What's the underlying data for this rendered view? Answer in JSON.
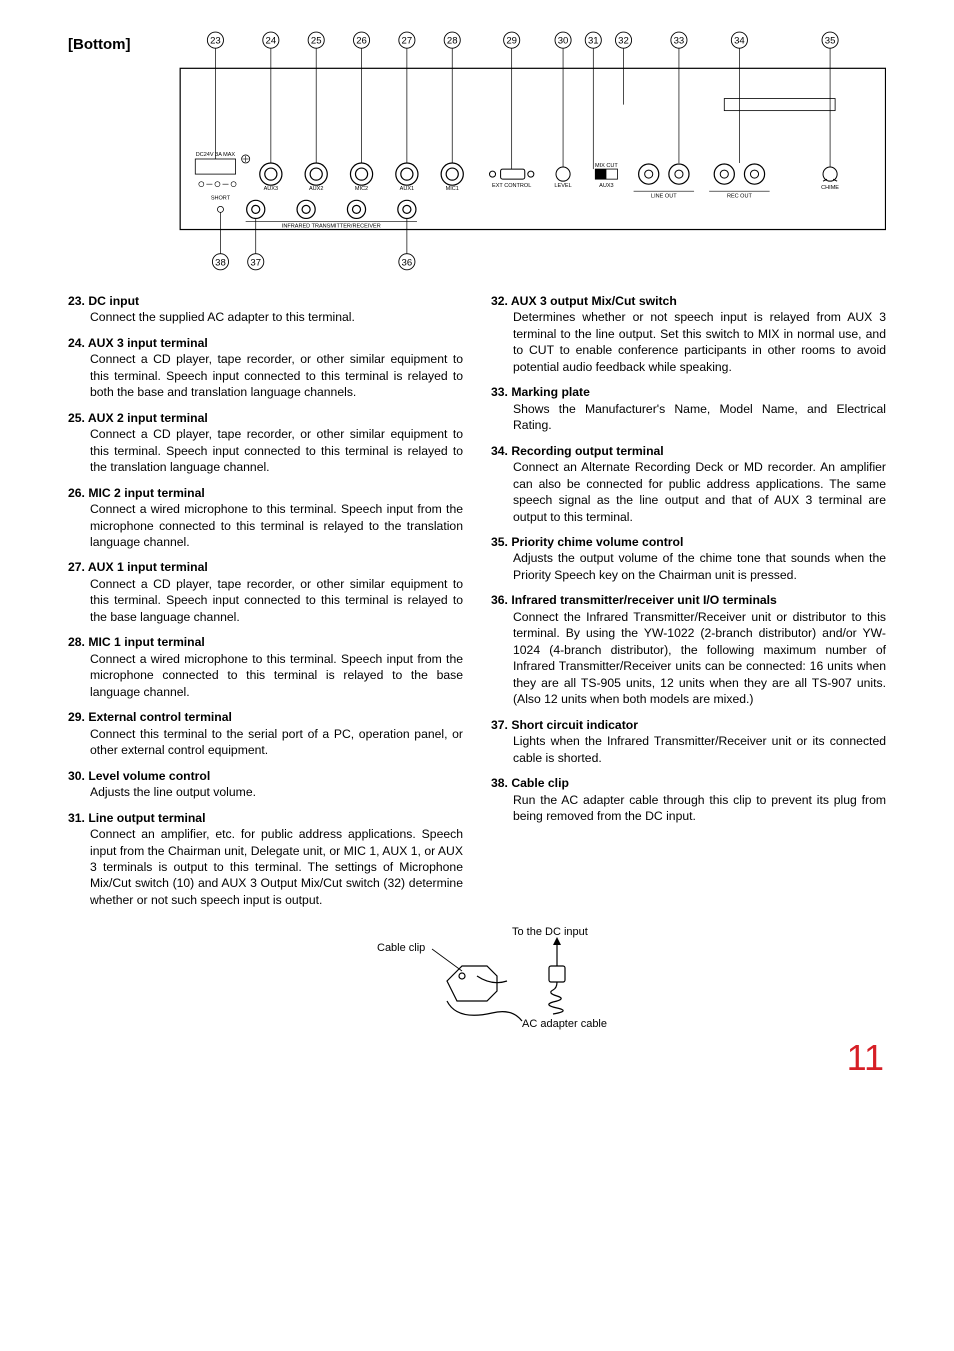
{
  "section_title": "[Bottom]",
  "page_number": "11",
  "diagram": {
    "callouts_top": [
      "23",
      "24",
      "25",
      "26",
      "27",
      "28",
      "29",
      "30",
      "31",
      "32",
      "33",
      "34",
      "35"
    ],
    "callouts_bottom": [
      "38",
      "37",
      "36"
    ],
    "port_labels": {
      "dc": "DC24V 3A MAX",
      "short": "SHORT",
      "aux3": "AUX3",
      "aux2": "AUX2",
      "mic2": "MIC2",
      "aux1": "AUX1",
      "mic1": "MIC1",
      "ext": "EXT CONTROL",
      "level": "LEVEL",
      "mixcut": "MIX  CUT",
      "mixcut_aux3": "AUX3",
      "lineout": "LINE OUT",
      "recout": "REC OUT",
      "chime": "CHIME",
      "ir": "INFRARED TRANSMITTER/RECEIVER"
    }
  },
  "left_items": [
    {
      "num": "23.",
      "title": "DC input",
      "body": "Connect the supplied AC adapter to this terminal."
    },
    {
      "num": "24.",
      "title": "AUX 3 input terminal",
      "body": "Connect a CD player, tape recorder, or other similar equipment to this terminal. Speech input connected to this terminal is relayed to both the base and translation language channels."
    },
    {
      "num": "25.",
      "title": "AUX 2 input terminal",
      "body": "Connect a CD player, tape recorder, or other similar equipment to this terminal. Speech input connected to this terminal is relayed to the translation language channel."
    },
    {
      "num": "26.",
      "title": "MIC 2 input terminal",
      "body": "Connect a wired microphone to this terminal. Speech input from the microphone connected to this terminal is relayed to the translation language channel."
    },
    {
      "num": "27.",
      "title": "AUX 1 input terminal",
      "body": "Connect a CD player, tape recorder, or other similar equipment to this terminal. Speech input connected to this terminal is relayed to the base language channel."
    },
    {
      "num": "28.",
      "title": "MIC 1 input terminal",
      "body": "Connect a wired microphone to this terminal. Speech input from the microphone connected to this terminal is relayed to the base language channel."
    },
    {
      "num": "29.",
      "title": "External control terminal",
      "body": "Connect this terminal to the serial port of a PC, operation panel, or other external control equipment."
    },
    {
      "num": "30.",
      "title": "Level volume control",
      "body": "Adjusts the line output volume."
    },
    {
      "num": "31.",
      "title": "Line output terminal",
      "body": "Connect an amplifier, etc. for public address applications. Speech input from the Chairman unit, Delegate unit, or MIC 1, AUX 1, or AUX 3 terminals is output to this terminal. The settings of Microphone Mix/Cut switch (10) and AUX 3 Output Mix/Cut switch (32) determine whether or not such speech input is output."
    }
  ],
  "right_items": [
    {
      "num": "32.",
      "title": "AUX 3 output Mix/Cut switch",
      "body": "Determines whether or not speech input is relayed from AUX 3 terminal to the line output. Set this switch to MIX in normal use, and to CUT to enable conference participants in other rooms to avoid potential audio feedback while speaking."
    },
    {
      "num": "33.",
      "title": "Marking plate",
      "body": "Shows the Manufacturer's Name, Model Name, and Electrical Rating."
    },
    {
      "num": "34.",
      "title": "Recording output terminal",
      "body": "Connect an Alternate Recording Deck or MD recorder. An amplifier can also be connected for public address applications. The same speech signal as the line output and that of AUX 3 terminal are output to this terminal."
    },
    {
      "num": "35.",
      "title": "Priority chime volume control",
      "body": "Adjusts the output volume of the chime tone that sounds when the Priority Speech key on the Chairman unit is pressed."
    },
    {
      "num": "36.",
      "title": "Infrared transmitter/receiver unit I/O terminals",
      "body": "Connect the Infrared Transmitter/Receiver unit or distributor to this terminal. By using the YW-1022 (2-branch distributor) and/or YW-1024 (4-branch distributor), the following maximum number of Infrared Transmitter/Receiver units can be connected: 16 units when they are all TS-905 units, 12 units when they are all TS-907 units. (Also 12 units when both models are mixed.)"
    },
    {
      "num": "37.",
      "title": "Short circuit indicator",
      "body": "Lights when the Infrared Transmitter/Receiver unit or its connected cable is shorted."
    },
    {
      "num": "38.",
      "title": "Cable clip",
      "body": "Run the AC adapter cable through this clip to prevent its plug from being removed from the DC input."
    }
  ],
  "cable_fig": {
    "clip": "Cable clip",
    "dc": "To the DC input",
    "ac": "AC adapter cable"
  }
}
